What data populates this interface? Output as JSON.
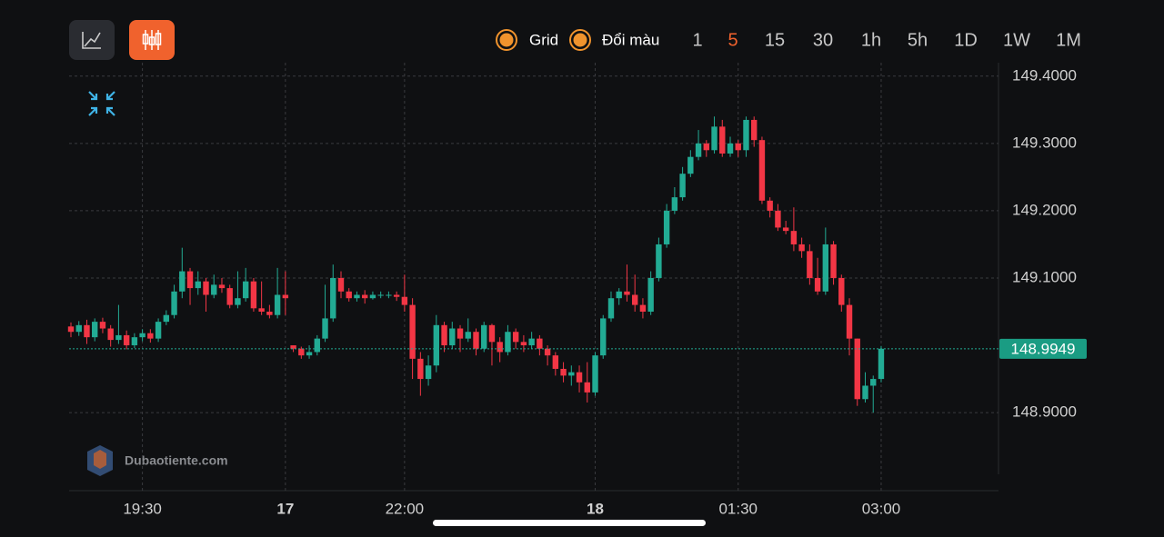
{
  "ui": {
    "toggles": [
      "Grid",
      "Đổi màu"
    ],
    "intervals": [
      "1",
      "5",
      "15",
      "30",
      "1h",
      "5h",
      "1D",
      "1W",
      "1M"
    ],
    "active_interval": "5",
    "watermark": "Dubaotiente.com"
  },
  "chart_data": {
    "type": "candlestick",
    "grid": true,
    "up_color": "#22ab94",
    "down_color": "#f23645",
    "ylim": [
      148.784,
      149.42
    ],
    "yticks": [
      {
        "value": 148.9,
        "label": "148.9000"
      },
      {
        "value": 149.1,
        "label": "149.1000"
      },
      {
        "value": 149.2,
        "label": "149.2000"
      },
      {
        "value": 149.3,
        "label": "149.3000"
      },
      {
        "value": 149.4,
        "label": "149.4000"
      }
    ],
    "categories": [
      null,
      null,
      null,
      null,
      null,
      null,
      null,
      null,
      null,
      "19:30",
      null,
      null,
      null,
      null,
      null,
      null,
      null,
      null,
      null,
      null,
      null,
      null,
      null,
      null,
      null,
      null,
      null,
      "17",
      null,
      null,
      null,
      null,
      null,
      null,
      null,
      null,
      null,
      null,
      null,
      null,
      null,
      null,
      "22:00",
      null,
      null,
      null,
      null,
      null,
      null,
      null,
      null,
      null,
      null,
      null,
      null,
      null,
      null,
      null,
      null,
      null,
      null,
      null,
      null,
      null,
      null,
      null,
      "18",
      null,
      null,
      null,
      null,
      null,
      null,
      null,
      null,
      null,
      null,
      null,
      null,
      null,
      null,
      null,
      null,
      null,
      "01:30",
      null,
      null,
      null,
      null,
      null,
      null,
      null,
      null,
      null,
      null,
      null,
      null,
      null,
      null,
      null,
      null,
      null,
      "03:00"
    ],
    "open": [
      149.028,
      149.02,
      149.03,
      149.012,
      149.035,
      149.025,
      149.008,
      149.015,
      149.0,
      149.012,
      149.018,
      149.01,
      149.035,
      149.045,
      149.08,
      149.11,
      149.085,
      149.095,
      149.075,
      149.09,
      149.085,
      149.06,
      149.07,
      149.095,
      149.055,
      149.05,
      149.045,
      149.075,
      149.0,
      148.995,
      148.985,
      148.99,
      149.01,
      149.04,
      149.1,
      149.08,
      149.07,
      149.075,
      149.07,
      149.075,
      149.075,
      149.075,
      149.072,
      149.06,
      148.98,
      148.95,
      148.97,
      149.03,
      149.0,
      149.025,
      149.01,
      149.02,
      148.995,
      149.03,
      149.005,
      148.99,
      149.02,
      149.005,
      149.0,
      149.01,
      148.995,
      148.985,
      148.965,
      148.955,
      148.96,
      148.945,
      148.93,
      148.985,
      149.04,
      149.07,
      149.08,
      149.075,
      149.06,
      149.05,
      149.1,
      149.15,
      149.2,
      149.22,
      149.255,
      149.28,
      149.3,
      149.29,
      149.325,
      149.285,
      149.3,
      149.29,
      149.335,
      149.305,
      149.215,
      149.2,
      149.175,
      149.17,
      149.15,
      149.14,
      149.1,
      149.08,
      149.15,
      149.1,
      149.06,
      149.01,
      148.92,
      148.94,
      148.95
    ],
    "high": [
      149.034,
      149.036,
      149.038,
      149.04,
      149.041,
      149.03,
      149.06,
      149.022,
      149.018,
      149.024,
      149.024,
      149.04,
      149.052,
      149.09,
      149.145,
      149.115,
      149.11,
      149.1,
      149.105,
      149.1,
      149.09,
      149.11,
      149.115,
      149.1,
      149.095,
      149.06,
      149.115,
      149.11,
      149.0,
      148.998,
      149.0,
      149.015,
      149.09,
      149.12,
      149.11,
      149.085,
      149.08,
      149.082,
      149.08,
      149.08,
      149.08,
      149.08,
      149.105,
      149.07,
      148.99,
      148.985,
      149.045,
      149.035,
      149.035,
      149.03,
      149.04,
      149.025,
      149.035,
      149.032,
      149.012,
      149.03,
      149.025,
      149.015,
      149.02,
      149.015,
      149.0,
      148.99,
      148.975,
      148.97,
      148.97,
      148.975,
      148.99,
      149.045,
      149.08,
      149.085,
      149.12,
      149.105,
      149.07,
      149.11,
      149.16,
      149.21,
      149.235,
      149.265,
      149.29,
      149.32,
      149.305,
      149.34,
      149.335,
      149.31,
      149.305,
      149.34,
      149.34,
      149.31,
      149.22,
      149.21,
      149.185,
      149.205,
      149.16,
      149.15,
      149.13,
      149.175,
      149.155,
      149.105,
      149.07,
      149.01,
      148.96,
      148.955,
      148.999
    ],
    "low": [
      149.012,
      149.014,
      149.002,
      149.006,
      149.018,
      148.998,
      149.002,
      148.994,
      148.996,
      149.006,
      149.004,
      149.005,
      149.03,
      149.04,
      149.07,
      149.06,
      149.075,
      149.05,
      149.07,
      149.078,
      149.055,
      149.055,
      149.065,
      149.05,
      149.045,
      149.04,
      149.04,
      149.045,
      148.99,
      148.98,
      148.98,
      148.985,
      149.005,
      149.035,
      149.07,
      149.065,
      149.065,
      149.062,
      149.068,
      149.07,
      149.07,
      149.066,
      149.05,
      148.95,
      148.925,
      148.94,
      148.96,
      148.99,
      148.995,
      148.99,
      149.005,
      148.985,
      148.99,
      148.97,
      148.975,
      148.985,
      148.995,
      148.99,
      148.995,
      148.985,
      148.97,
      148.955,
      148.945,
      148.94,
      148.93,
      148.915,
      148.925,
      148.98,
      149.035,
      149.06,
      149.065,
      149.05,
      149.04,
      149.045,
      149.095,
      149.145,
      149.195,
      149.215,
      149.25,
      149.275,
      149.28,
      149.285,
      149.28,
      149.28,
      149.28,
      149.28,
      149.295,
      149.21,
      149.19,
      149.17,
      149.165,
      149.14,
      149.13,
      149.09,
      149.075,
      149.075,
      149.09,
      149.05,
      148.985,
      148.91,
      148.915,
      148.9,
      148.945
    ],
    "close": [
      149.02,
      149.03,
      149.012,
      149.035,
      149.025,
      149.008,
      149.015,
      149.0,
      149.012,
      149.018,
      149.01,
      149.035,
      149.045,
      149.08,
      149.11,
      149.085,
      149.095,
      149.075,
      149.09,
      149.085,
      149.06,
      149.07,
      149.095,
      149.055,
      149.05,
      149.045,
      149.075,
      149.07,
      148.995,
      148.985,
      148.99,
      149.01,
      149.04,
      149.1,
      149.08,
      149.07,
      149.075,
      149.07,
      149.075,
      149.075,
      149.075,
      149.072,
      149.06,
      148.98,
      148.95,
      148.97,
      149.03,
      149.0,
      149.025,
      149.01,
      149.02,
      148.995,
      149.03,
      149.005,
      148.99,
      149.02,
      149.005,
      149.0,
      149.01,
      148.995,
      148.985,
      148.965,
      148.955,
      148.96,
      148.945,
      148.93,
      148.985,
      149.04,
      149.07,
      149.08,
      149.075,
      149.06,
      149.05,
      149.1,
      149.15,
      149.2,
      149.22,
      149.255,
      149.28,
      149.3,
      149.29,
      149.325,
      149.285,
      149.3,
      149.29,
      149.335,
      149.305,
      149.215,
      149.2,
      149.175,
      149.17,
      149.15,
      149.14,
      149.1,
      149.08,
      149.15,
      149.1,
      149.06,
      149.01,
      148.92,
      148.94,
      148.95,
      148.9949
    ]
  }
}
